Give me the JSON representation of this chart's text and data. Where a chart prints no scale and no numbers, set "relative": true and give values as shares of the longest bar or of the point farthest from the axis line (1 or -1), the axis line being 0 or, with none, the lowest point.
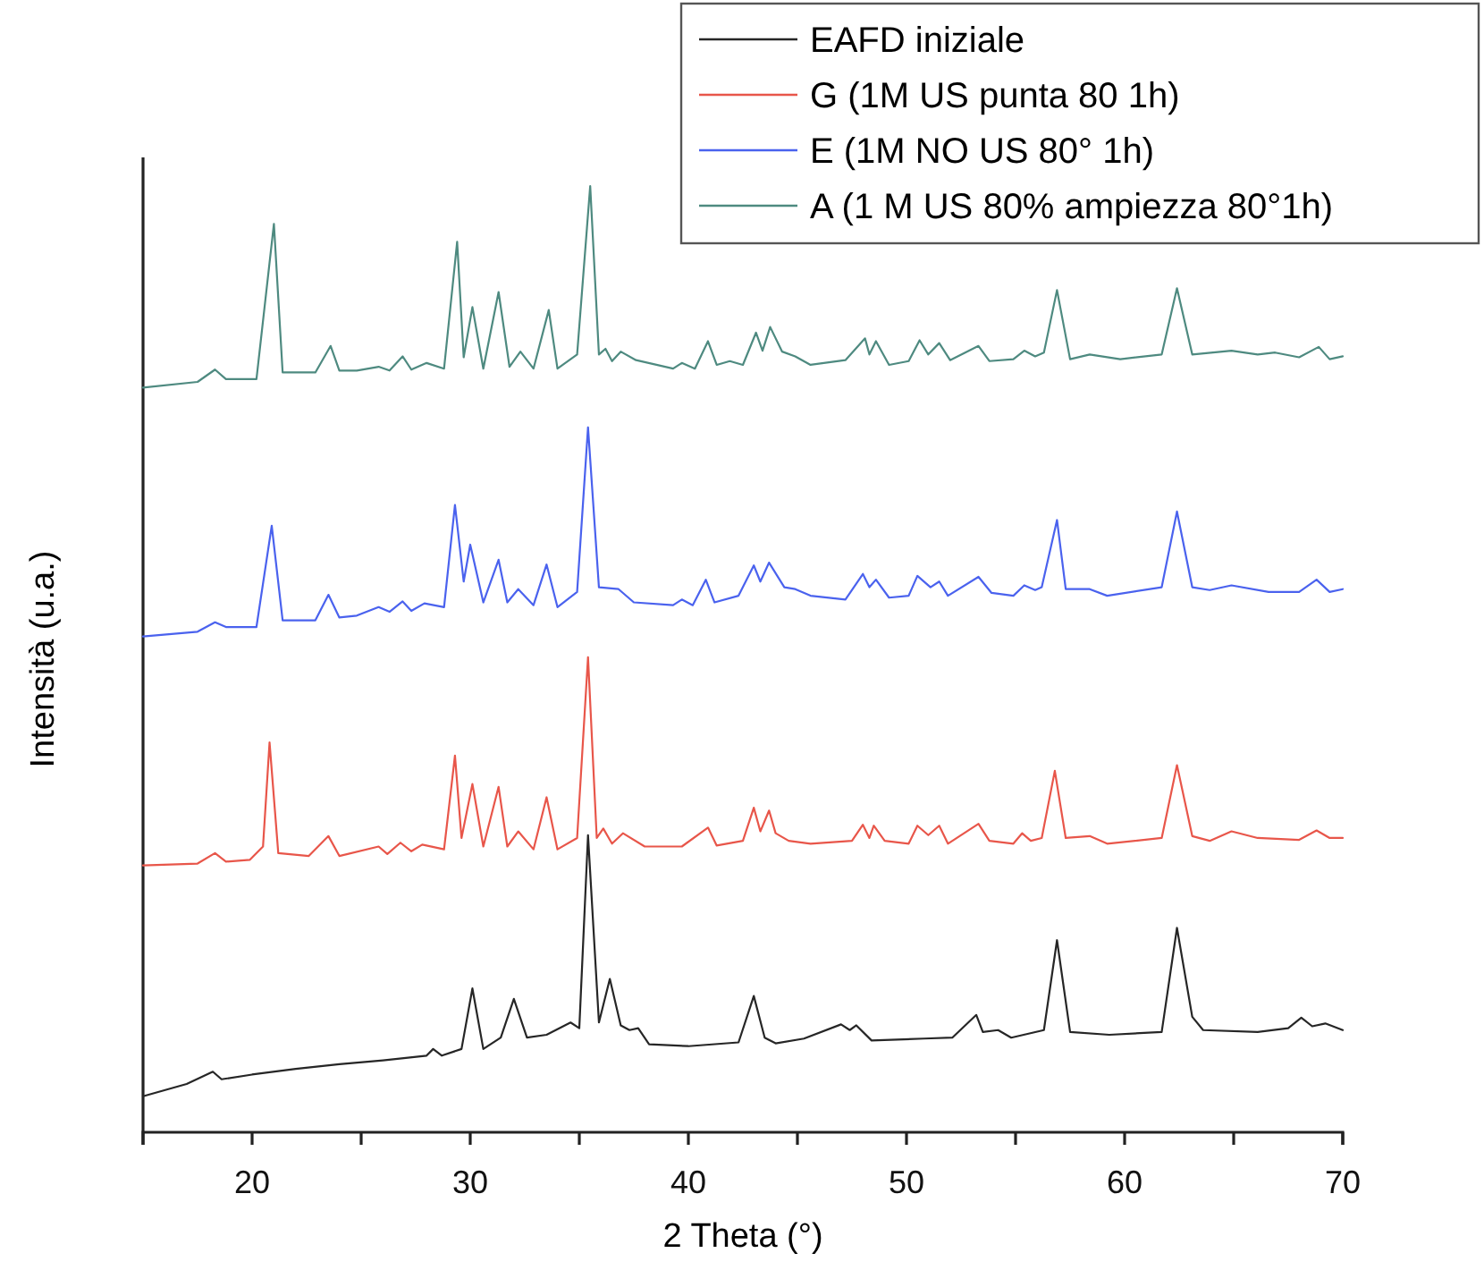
{
  "chart_data": {
    "type": "line",
    "relative": true,
    "xlabel": "2 Theta (°)",
    "ylabel": "Intensità (u.a.)",
    "xlim": [
      15,
      70
    ],
    "xticks": [
      {
        "value": 15,
        "label": null
      },
      20,
      {
        "value": 25,
        "label": null
      },
      30,
      {
        "value": 35,
        "label": null
      },
      40,
      {
        "value": 45,
        "label": null
      },
      50,
      {
        "value": 55,
        "label": null
      },
      60,
      {
        "value": 65,
        "label": null
      },
      70
    ],
    "legend": "top right",
    "series": [
      {
        "name": "EAFD iniziale",
        "color": "#262626",
        "x": [
          15,
          17,
          18.2,
          18.6,
          20,
          22,
          24,
          26,
          28,
          28.3,
          28.7,
          29.6,
          30.1,
          30.6,
          31.4,
          32,
          32.6,
          33.5,
          34.6,
          35,
          35.4,
          35.9,
          36.4,
          36.9,
          37.3,
          37.7,
          38.2,
          40,
          42.3,
          43,
          43.5,
          44,
          45.3,
          47,
          47.4,
          47.7,
          48.4,
          50.8,
          52.1,
          53.2,
          53.5,
          54.2,
          54.8,
          56.3,
          56.9,
          57.5,
          59.3,
          61.7,
          62.4,
          63.1,
          63.6,
          66.1,
          67.5,
          68.1,
          68.6,
          69.2,
          70
        ],
        "values": [
          0.038,
          0.051,
          0.064,
          0.056,
          0.061,
          0.067,
          0.072,
          0.076,
          0.081,
          0.088,
          0.081,
          0.088,
          0.152,
          0.088,
          0.1,
          0.141,
          0.1,
          0.103,
          0.116,
          0.11,
          0.314,
          0.116,
          0.162,
          0.113,
          0.108,
          0.11,
          0.093,
          0.091,
          0.095,
          0.144,
          0.1,
          0.094,
          0.099,
          0.114,
          0.108,
          0.113,
          0.097,
          0.099,
          0.1,
          0.124,
          0.106,
          0.108,
          0.1,
          0.108,
          0.203,
          0.106,
          0.103,
          0.106,
          0.216,
          0.122,
          0.108,
          0.106,
          0.11,
          0.121,
          0.112,
          0.115,
          0.108
        ]
      },
      {
        "name": "G (1M US punta 80 1h)",
        "color": "#e8564a",
        "x": [
          15,
          17.5,
          18.3,
          18.8,
          19.9,
          20.5,
          20.8,
          21.2,
          22.6,
          23.5,
          24,
          25.8,
          26.2,
          26.8,
          27.3,
          27.8,
          28.8,
          29.3,
          29.6,
          30.1,
          30.6,
          31.3,
          31.7,
          32.2,
          32.9,
          33.5,
          34,
          34.9,
          35.4,
          35.8,
          36.1,
          36.5,
          37,
          38,
          39.7,
          40.9,
          41.3,
          42.5,
          43,
          43.3,
          43.7,
          44,
          44.6,
          45.6,
          47.5,
          48,
          48.3,
          48.5,
          49,
          50.1,
          50.5,
          51,
          51.5,
          51.9,
          53.3,
          53.8,
          54.9,
          55.3,
          55.7,
          56.2,
          56.8,
          57.3,
          58.4,
          59.2,
          61.7,
          62.4,
          63.1,
          63.9,
          64.9,
          66.1,
          68,
          68.8,
          69.4,
          70
        ],
        "values": [
          0.282,
          0.284,
          0.295,
          0.286,
          0.288,
          0.302,
          0.412,
          0.295,
          0.292,
          0.313,
          0.292,
          0.302,
          0.294,
          0.306,
          0.297,
          0.304,
          0.299,
          0.398,
          0.311,
          0.368,
          0.302,
          0.365,
          0.302,
          0.318,
          0.299,
          0.354,
          0.299,
          0.311,
          0.502,
          0.311,
          0.321,
          0.305,
          0.316,
          0.302,
          0.302,
          0.322,
          0.303,
          0.308,
          0.343,
          0.318,
          0.34,
          0.316,
          0.308,
          0.305,
          0.308,
          0.325,
          0.311,
          0.324,
          0.308,
          0.305,
          0.324,
          0.314,
          0.324,
          0.305,
          0.326,
          0.308,
          0.305,
          0.316,
          0.308,
          0.311,
          0.382,
          0.311,
          0.313,
          0.305,
          0.311,
          0.388,
          0.313,
          0.308,
          0.318,
          0.311,
          0.309,
          0.319,
          0.311,
          0.311
        ]
      },
      {
        "name": "E (1M NO US 80° 1h)",
        "color": "#4a62ee",
        "x": [
          15,
          17.5,
          18.3,
          18.8,
          20.2,
          20.9,
          21.4,
          22.9,
          23.5,
          24,
          24.8,
          25.8,
          26.3,
          26.9,
          27.3,
          27.9,
          28.8,
          29.3,
          29.7,
          30,
          30.6,
          31.3,
          31.7,
          32.2,
          32.9,
          33.5,
          34,
          34.9,
          35.4,
          35.9,
          36.8,
          37.5,
          39.3,
          39.7,
          40.2,
          40.8,
          41.2,
          42.3,
          43,
          43.3,
          43.7,
          44.4,
          44.9,
          45.6,
          47.2,
          48,
          48.3,
          48.6,
          49.2,
          50.1,
          50.5,
          51.1,
          51.5,
          51.9,
          53.3,
          53.9,
          54.9,
          55.4,
          55.9,
          56.2,
          56.9,
          57.3,
          58.4,
          59.2,
          61.7,
          62.4,
          63.1,
          63.9,
          64.9,
          66.6,
          68,
          68.8,
          69.4,
          70
        ],
        "values": [
          0.524,
          0.529,
          0.539,
          0.534,
          0.534,
          0.641,
          0.541,
          0.541,
          0.568,
          0.544,
          0.546,
          0.555,
          0.55,
          0.561,
          0.551,
          0.559,
          0.555,
          0.663,
          0.582,
          0.621,
          0.56,
          0.605,
          0.56,
          0.574,
          0.557,
          0.6,
          0.555,
          0.571,
          0.745,
          0.576,
          0.574,
          0.56,
          0.557,
          0.563,
          0.557,
          0.584,
          0.56,
          0.567,
          0.599,
          0.582,
          0.602,
          0.576,
          0.574,
          0.567,
          0.563,
          0.59,
          0.576,
          0.584,
          0.565,
          0.567,
          0.588,
          0.576,
          0.582,
          0.567,
          0.587,
          0.57,
          0.567,
          0.578,
          0.573,
          0.576,
          0.647,
          0.574,
          0.574,
          0.567,
          0.576,
          0.656,
          0.576,
          0.573,
          0.578,
          0.571,
          0.571,
          0.584,
          0.571,
          0.574
        ]
      },
      {
        "name": "A (1 M US 80% ampiezza 80°1h)",
        "color": "#4e8a80",
        "x": [
          15,
          17.5,
          18.3,
          18.8,
          20.2,
          21,
          21.4,
          22.9,
          23.6,
          24,
          24.8,
          25.8,
          26.3,
          26.9,
          27.3,
          28,
          28.8,
          29.4,
          29.7,
          30.1,
          30.6,
          31.3,
          31.8,
          32.3,
          32.9,
          33.6,
          34,
          34.9,
          35.5,
          35.9,
          36.2,
          36.5,
          36.9,
          37.6,
          39.3,
          39.7,
          40.3,
          40.9,
          41.3,
          41.9,
          42.5,
          43.1,
          43.4,
          43.75,
          44.3,
          44.9,
          45.6,
          47.2,
          48.1,
          48.3,
          48.6,
          49.2,
          50.1,
          50.6,
          51,
          51.5,
          52,
          53.3,
          53.8,
          54.9,
          55.4,
          55.9,
          56.3,
          56.9,
          57.5,
          58.4,
          59.8,
          61.7,
          62.4,
          63.1,
          64.9,
          66.1,
          66.9,
          68,
          68.9,
          69.4,
          70
        ],
        "values": [
          0.787,
          0.793,
          0.806,
          0.796,
          0.796,
          0.96,
          0.803,
          0.803,
          0.831,
          0.805,
          0.805,
          0.809,
          0.805,
          0.82,
          0.806,
          0.813,
          0.807,
          0.941,
          0.819,
          0.872,
          0.807,
          0.888,
          0.809,
          0.825,
          0.807,
          0.869,
          0.807,
          0.822,
          1,
          0.822,
          0.828,
          0.815,
          0.825,
          0.816,
          0.807,
          0.813,
          0.807,
          0.836,
          0.811,
          0.815,
          0.811,
          0.845,
          0.826,
          0.851,
          0.825,
          0.82,
          0.811,
          0.816,
          0.839,
          0.822,
          0.836,
          0.811,
          0.815,
          0.837,
          0.822,
          0.834,
          0.816,
          0.831,
          0.815,
          0.817,
          0.826,
          0.82,
          0.824,
          0.89,
          0.817,
          0.822,
          0.817,
          0.822,
          0.892,
          0.822,
          0.826,
          0.822,
          0.824,
          0.819,
          0.83,
          0.817,
          0.82
        ]
      }
    ]
  }
}
